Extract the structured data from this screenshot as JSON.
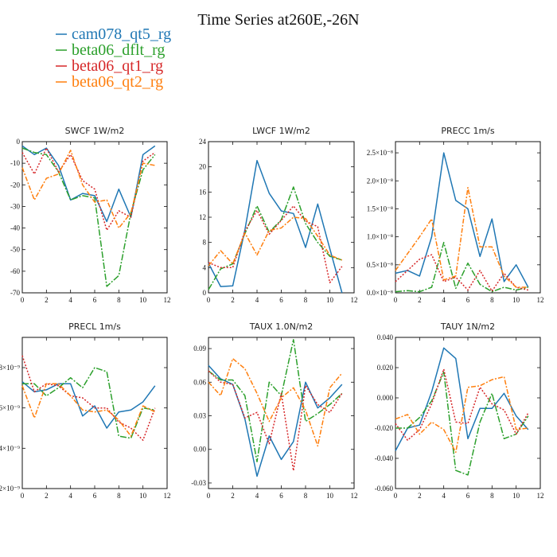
{
  "colors": {
    "cam078_qt5_rg": "#1f77b4",
    "beta06_dflt_rg": "#2ca02c",
    "beta06_qt1_rg": "#d62728",
    "beta06_qt2_rg": "#ff7f0e"
  },
  "chart_data": {
    "type": "line",
    "title": "Time Series at260E,-26N",
    "legend": {
      "placement": "top-left",
      "entries": [
        "cam078_qt5_rg",
        "beta06_dflt_rg",
        "beta06_qt1_rg",
        "beta06_qt2_rg"
      ]
    },
    "x": [
      0,
      1,
      2,
      3,
      4,
      5,
      6,
      7,
      8,
      9,
      10,
      11
    ],
    "xlim": [
      0,
      12
    ],
    "xticks": [
      "0",
      "2",
      "4",
      "6",
      "8",
      "10",
      "12"
    ],
    "grid": false,
    "panels": [
      {
        "title": "SWCF   1W/m2",
        "ylim": [
          -70,
          0
        ],
        "yticks": [
          "-70",
          "-60",
          "-50",
          "-40",
          "-30",
          "-20",
          "-10",
          "0"
        ],
        "series": [
          {
            "name": "cam078_qt5_rg",
            "values": [
              -2,
              -6,
              -3,
              -11,
              -27,
              -24,
              -25,
              -37,
              -22,
              -35,
              -6,
              -2
            ]
          },
          {
            "name": "beta06_dflt_rg",
            "values": [
              -3,
              -5,
              -6,
              -14,
              -27,
              -25,
              -26,
              -67,
              -62,
              -33,
              -13,
              -6
            ]
          },
          {
            "name": "beta06_qt1_rg",
            "values": [
              -5,
              -15,
              -3,
              -14,
              -6,
              -18,
              -22,
              -41,
              -32,
              -35,
              -9,
              -5
            ]
          },
          {
            "name": "beta06_qt2_rg",
            "values": [
              -12,
              -27,
              -17,
              -15,
              -4,
              -20,
              -28,
              -27,
              -40,
              -33,
              -10,
              -11
            ]
          }
        ]
      },
      {
        "title": "LWCF   1W/m2",
        "ylim": [
          0,
          24
        ],
        "yticks": [
          "0",
          "4",
          "8",
          "12",
          "16",
          "20",
          "24"
        ],
        "series": [
          {
            "name": "cam078_qt5_rg",
            "values": [
              4.7,
              1.0,
              1.1,
              10.0,
              21.0,
              15.8,
              13.0,
              12.6,
              7.2,
              14.1,
              7.0,
              0.0
            ]
          },
          {
            "name": "beta06_dflt_rg",
            "values": [
              0.5,
              3.8,
              4.6,
              9.4,
              13.8,
              9.6,
              11.6,
              16.8,
              11.0,
              8.0,
              5.8,
              5.2
            ]
          },
          {
            "name": "beta06_qt1_rg",
            "values": [
              4.8,
              4.0,
              4.0,
              9.8,
              13.1,
              9.3,
              11.5,
              13.8,
              11.4,
              10.5,
              1.6,
              4.2
            ]
          },
          {
            "name": "beta06_qt2_rg",
            "values": [
              4.3,
              6.7,
              4.6,
              9.5,
              6.0,
              9.9,
              10.3,
              12.0,
              11.8,
              9.0,
              6.0,
              5.2
            ]
          }
        ]
      },
      {
        "title": "PRECC   1m/s",
        "ylim": [
          0,
          2.7
        ],
        "yticks": [
          "0.0×10⁻⁸",
          "0.5×10⁻⁸",
          "1.0×10⁻⁸",
          "1.5×10⁻⁸",
          "2.0×10⁻⁸",
          "2.5×10⁻⁸"
        ],
        "series": [
          {
            "name": "cam078_qt5_rg",
            "values": [
              0.35,
              0.4,
              0.3,
              1.0,
              2.5,
              1.65,
              1.5,
              0.65,
              1.32,
              0.2,
              0.5,
              0.1
            ]
          },
          {
            "name": "beta06_dflt_rg",
            "values": [
              0.02,
              0.04,
              0.02,
              0.1,
              0.9,
              0.08,
              0.53,
              0.15,
              0.02,
              0.1,
              0.05,
              0.1
            ]
          },
          {
            "name": "beta06_qt1_rg",
            "values": [
              0.2,
              0.4,
              0.6,
              0.68,
              0.2,
              0.28,
              0.05,
              0.4,
              0.03,
              0.35,
              0.1,
              0.05
            ]
          },
          {
            "name": "beta06_qt2_rg",
            "values": [
              0.4,
              0.7,
              1.0,
              1.32,
              0.23,
              0.3,
              1.88,
              0.82,
              0.82,
              0.3,
              0.1,
              0.1
            ]
          }
        ]
      },
      {
        "title": "PRECL   1m/s",
        "ylim": [
          2.0,
          9.5
        ],
        "yticks": [
          "2×10⁻⁹",
          "4×10⁻⁹",
          "6×10⁻⁹",
          "8×10⁻⁹"
        ],
        "series": [
          {
            "name": "cam078_qt5_rg",
            "values": [
              7.3,
              6.8,
              6.9,
              7.2,
              7.2,
              5.6,
              6.1,
              5.0,
              5.8,
              5.9,
              6.3,
              7.1
            ]
          },
          {
            "name": "beta06_dflt_rg",
            "values": [
              7.2,
              7.2,
              6.6,
              7.0,
              7.5,
              7.0,
              8.0,
              7.8,
              4.6,
              4.5,
              6.0,
              5.9
            ]
          },
          {
            "name": "beta06_qt1_rg",
            "values": [
              8.6,
              6.8,
              7.2,
              7.1,
              6.6,
              6.5,
              6.0,
              6.0,
              5.3,
              5.0,
              4.4,
              6.0
            ]
          },
          {
            "name": "beta06_qt2_rg",
            "values": [
              7.1,
              5.5,
              7.2,
              7.2,
              6.6,
              5.9,
              5.8,
              5.9,
              5.4,
              4.6,
              6.1,
              5.8
            ]
          }
        ]
      },
      {
        "title": "TAUX   1.0N/m2",
        "ylim": [
          -0.035,
          0.1
        ],
        "yticks": [
          "-0.03",
          "0.00",
          "0.03",
          "0.06",
          "0.09"
        ],
        "series": [
          {
            "name": "cam078_qt5_rg",
            "values": [
              0.075,
              0.063,
              0.058,
              0.027,
              -0.024,
              0.012,
              -0.009,
              0.007,
              0.06,
              0.037,
              0.046,
              0.058
            ]
          },
          {
            "name": "beta06_dflt_rg",
            "values": [
              0.07,
              0.062,
              0.062,
              0.048,
              -0.011,
              0.06,
              0.048,
              0.098,
              0.025,
              0.032,
              0.04,
              0.05
            ]
          },
          {
            "name": "beta06_qt1_rg",
            "values": [
              0.07,
              0.06,
              0.058,
              0.028,
              0.033,
              0.005,
              0.05,
              -0.019,
              0.057,
              0.04,
              0.033,
              0.05
            ]
          },
          {
            "name": "beta06_qt2_rg",
            "values": [
              0.06,
              0.048,
              0.081,
              0.072,
              0.05,
              0.025,
              0.046,
              0.055,
              0.035,
              0.003,
              0.055,
              0.068
            ]
          }
        ]
      },
      {
        "title": "TAUY   1N/m2",
        "ylim": [
          -0.06,
          0.04
        ],
        "yticks": [
          "-0.060",
          "-0.040",
          "-0.020",
          "0.000",
          "0.020",
          "0.040"
        ],
        "series": [
          {
            "name": "cam078_qt5_rg",
            "values": [
              -0.035,
              -0.02,
              -0.018,
              0.004,
              0.033,
              0.026,
              -0.027,
              -0.007,
              -0.007,
              0.003,
              -0.012,
              -0.021
            ]
          },
          {
            "name": "beta06_dflt_rg",
            "values": [
              -0.02,
              -0.02,
              -0.013,
              -0.002,
              0.017,
              -0.048,
              -0.051,
              -0.016,
              0.003,
              -0.027,
              -0.024,
              -0.012
            ]
          },
          {
            "name": "beta06_qt1_rg",
            "values": [
              -0.017,
              -0.028,
              -0.021,
              -0.004,
              0.019,
              -0.016,
              -0.017,
              0.007,
              -0.004,
              -0.008,
              -0.024,
              -0.01
            ]
          },
          {
            "name": "beta06_qt2_rg",
            "values": [
              -0.014,
              -0.011,
              -0.024,
              -0.016,
              -0.021,
              -0.036,
              0.007,
              0.008,
              0.012,
              0.014,
              -0.021,
              -0.02
            ]
          }
        ]
      }
    ]
  }
}
